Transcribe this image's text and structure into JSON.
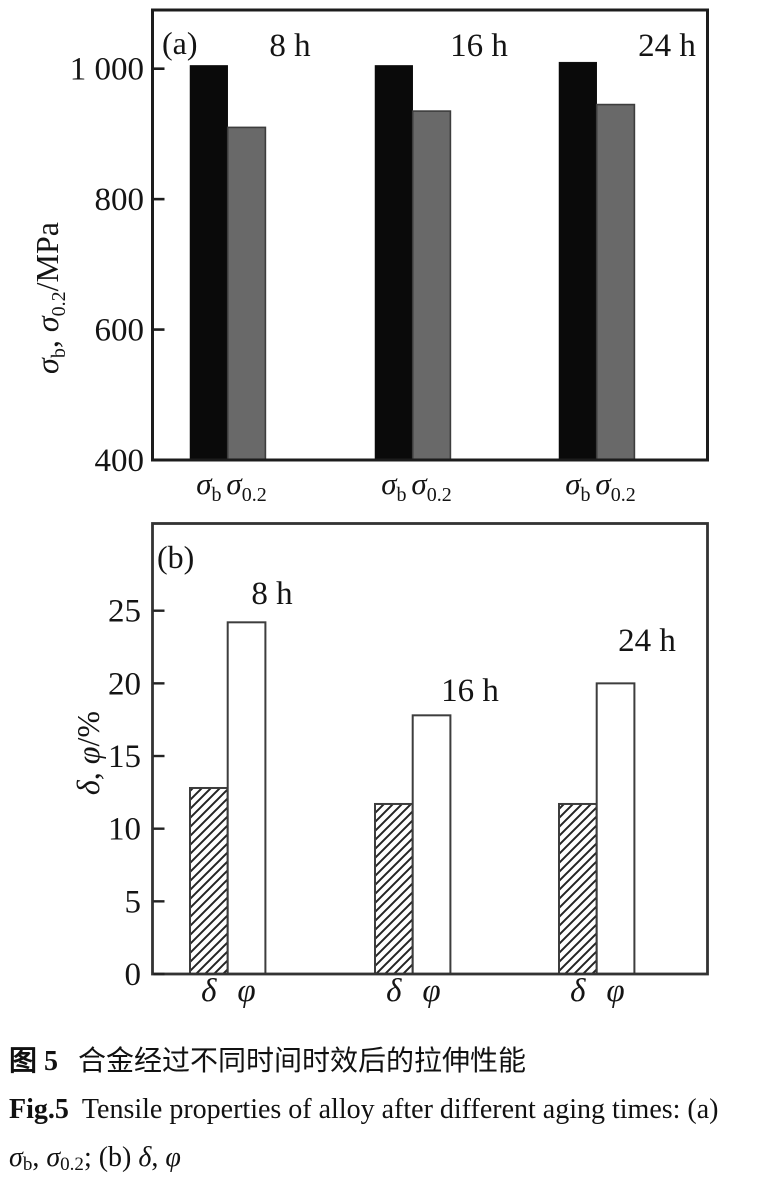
{
  "figure": {
    "caption": {
      "line1_label": "图 5",
      "line1_text": "合金经过不同时间时效后的拉伸性能",
      "line2_label": "Fig.5",
      "line2_text": "Tensile properties of alloy after different aging times: (a)",
      "line3_richtext": "σ_{b}, σ_{0.2}; (b) δ, φ"
    }
  },
  "chart_data": [
    {
      "type": "bar",
      "panel_label": "(a)",
      "categories": [
        "8 h",
        "16 h",
        "24 h"
      ],
      "series": [
        {
          "key": "sigma-b",
          "name": "σ_{b}",
          "values": [
            1005,
            1005,
            1010
          ],
          "fill": "#0a0a0a",
          "stroke": "#0a0a0a",
          "pattern": "solid"
        },
        {
          "key": "sigma-0-2",
          "name": "σ_{0.2}",
          "values": [
            910,
            935,
            945
          ],
          "fill": "#696969",
          "stroke": "#3d3d3d",
          "pattern": "solid"
        }
      ],
      "bar_tick_labels": [
        "σ_{b}",
        "σ_{0.2}"
      ],
      "ylabel": "σ_{b}, σ_{0.2}/MPa",
      "ylim": [
        400,
        1090
      ],
      "yticks": [
        400,
        600,
        800,
        1000
      ],
      "ytick_labels": [
        "400",
        "600",
        "800",
        "1 000"
      ],
      "grid": false,
      "legend_position": "none"
    },
    {
      "type": "bar",
      "panel_label": "(b)",
      "categories": [
        "8 h",
        "16 h",
        "24 h"
      ],
      "series": [
        {
          "key": "delta",
          "name": "δ",
          "values": [
            12.8,
            11.7,
            11.7
          ],
          "fill": "hatch",
          "stroke": "#3d3d3d",
          "pattern": "diagonal-hatch"
        },
        {
          "key": "phi",
          "name": "φ",
          "values": [
            24.2,
            17.8,
            20.0
          ],
          "fill": "#ffffff",
          "stroke": "#3d3d3d",
          "pattern": "open"
        }
      ],
      "bar_tick_labels": [
        "δ",
        "φ"
      ],
      "ylabel": "δ, φ/%",
      "ylim": [
        0,
        31
      ],
      "yticks": [
        0,
        5,
        10,
        15,
        20,
        25
      ],
      "ytick_labels": [
        "0",
        "5",
        "10",
        "15",
        "20",
        "25"
      ],
      "grid": false,
      "legend_position": "none"
    }
  ]
}
